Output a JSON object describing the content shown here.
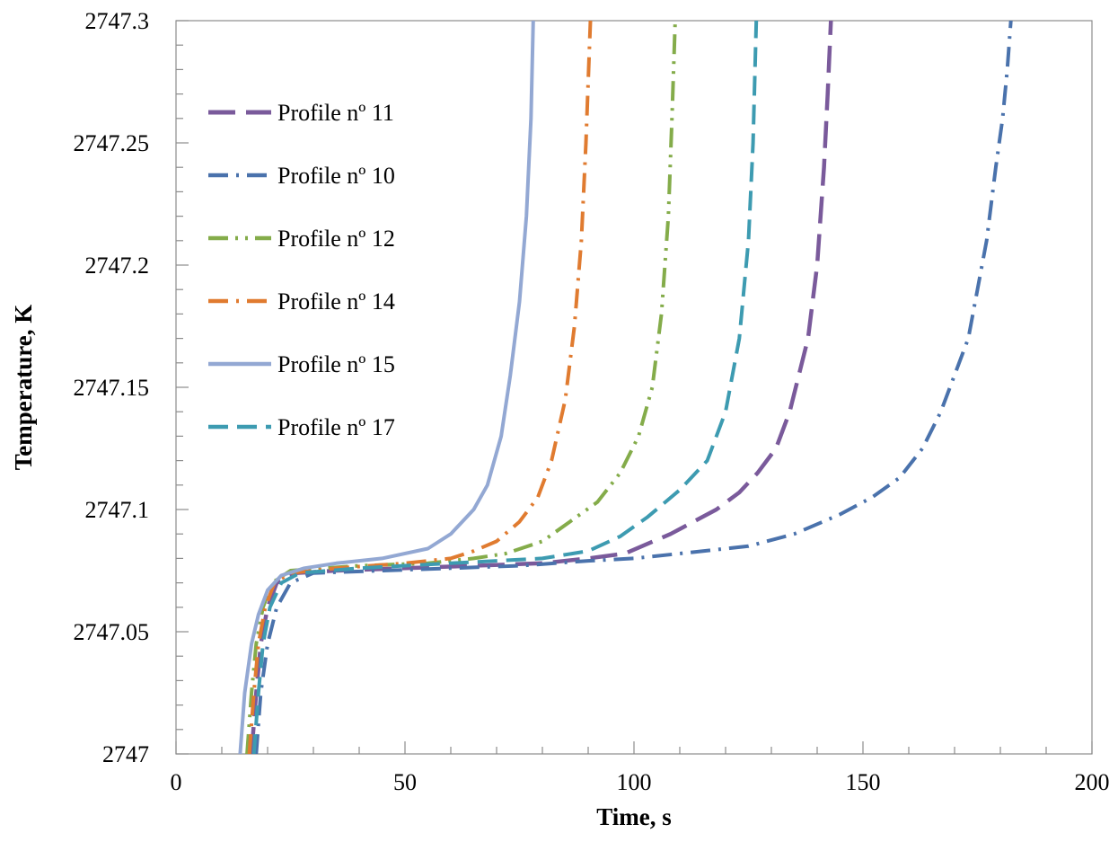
{
  "chart_data": {
    "type": "line",
    "title": "",
    "xlabel": "Time, s",
    "ylabel": "Temperature, K",
    "xlim": [
      0,
      200
    ],
    "ylim": [
      2747,
      2747.3
    ],
    "x_ticks": [
      "0",
      "50",
      "100",
      "150",
      "200"
    ],
    "y_ticks": [
      "2747",
      "2747.05",
      "2747.1",
      "2747.15",
      "2747.2",
      "2747.25",
      "2747.3"
    ],
    "grid": false,
    "legend_position": "top-left",
    "series": [
      {
        "name": "Profile nº 11",
        "color": "#7a5a9b",
        "dash": "long-dash",
        "points": [
          [
            16.5,
            2747
          ],
          [
            17.5,
            2747.025
          ],
          [
            18.5,
            2747.045
          ],
          [
            20,
            2747.06
          ],
          [
            22,
            2747.07
          ],
          [
            26,
            2747.074
          ],
          [
            35,
            2747.075
          ],
          [
            50,
            2747.076
          ],
          [
            65,
            2747.077
          ],
          [
            80,
            2747.078
          ],
          [
            90,
            2747.08
          ],
          [
            98,
            2747.082
          ],
          [
            103,
            2747.086
          ],
          [
            108,
            2747.09
          ],
          [
            113,
            2747.095
          ],
          [
            118,
            2747.1
          ],
          [
            123,
            2747.107
          ],
          [
            127,
            2747.115
          ],
          [
            131,
            2747.125
          ],
          [
            134,
            2747.14
          ],
          [
            136,
            2747.155
          ],
          [
            138,
            2747.17
          ],
          [
            140,
            2747.2
          ],
          [
            141.5,
            2747.24
          ],
          [
            142.3,
            2747.27
          ],
          [
            143,
            2747.3
          ]
        ]
      },
      {
        "name": "Profile nº 10",
        "color": "#4a72ac",
        "dash": "dash-dot",
        "points": [
          [
            17.5,
            2747
          ],
          [
            18.5,
            2747.025
          ],
          [
            20,
            2747.045
          ],
          [
            22,
            2747.06
          ],
          [
            25,
            2747.07
          ],
          [
            30,
            2747.074
          ],
          [
            45,
            2747.075
          ],
          [
            60,
            2747.076
          ],
          [
            75,
            2747.077
          ],
          [
            90,
            2747.079
          ],
          [
            100,
            2747.08
          ],
          [
            110,
            2747.082
          ],
          [
            125,
            2747.085
          ],
          [
            135,
            2747.09
          ],
          [
            145,
            2747.098
          ],
          [
            152,
            2747.105
          ],
          [
            158,
            2747.113
          ],
          [
            163,
            2747.125
          ],
          [
            167,
            2747.14
          ],
          [
            170,
            2747.155
          ],
          [
            173,
            2747.17
          ],
          [
            175,
            2747.19
          ],
          [
            177,
            2747.21
          ],
          [
            179,
            2747.24
          ],
          [
            180.5,
            2747.26
          ],
          [
            181.5,
            2747.28
          ],
          [
            182.3,
            2747.3
          ]
        ]
      },
      {
        "name": "Profile nº 12",
        "color": "#84ac4a",
        "dash": "dash-dot-dot",
        "points": [
          [
            15.5,
            2747
          ],
          [
            16.5,
            2747.025
          ],
          [
            17.5,
            2747.045
          ],
          [
            19,
            2747.06
          ],
          [
            21,
            2747.07
          ],
          [
            25,
            2747.075
          ],
          [
            40,
            2747.077
          ],
          [
            55,
            2747.078
          ],
          [
            65,
            2747.08
          ],
          [
            72,
            2747.082
          ],
          [
            80,
            2747.087
          ],
          [
            86,
            2747.095
          ],
          [
            92,
            2747.103
          ],
          [
            97,
            2747.115
          ],
          [
            101,
            2747.13
          ],
          [
            104,
            2747.15
          ],
          [
            106,
            2747.18
          ],
          [
            107.5,
            2747.22
          ],
          [
            108.3,
            2747.26
          ],
          [
            109,
            2747.3
          ]
        ]
      },
      {
        "name": "Profile nº 14",
        "color": "#e07b30",
        "dash": "dash-dot",
        "points": [
          [
            16,
            2747
          ],
          [
            17,
            2747.025
          ],
          [
            18,
            2747.045
          ],
          [
            19.5,
            2747.06
          ],
          [
            21.5,
            2747.07
          ],
          [
            25,
            2747.074
          ],
          [
            35,
            2747.076
          ],
          [
            50,
            2747.078
          ],
          [
            60,
            2747.08
          ],
          [
            65,
            2747.083
          ],
          [
            70,
            2747.087
          ],
          [
            75,
            2747.095
          ],
          [
            79,
            2747.105
          ],
          [
            82,
            2747.12
          ],
          [
            85,
            2747.145
          ],
          [
            87,
            2747.175
          ],
          [
            88.5,
            2747.21
          ],
          [
            89.5,
            2747.25
          ],
          [
            90.5,
            2747.3
          ]
        ]
      },
      {
        "name": "Profile nº 15",
        "color": "#93a8d3",
        "dash": "solid",
        "points": [
          [
            14,
            2747
          ],
          [
            15,
            2747.025
          ],
          [
            16.5,
            2747.045
          ],
          [
            18,
            2747.057
          ],
          [
            20,
            2747.067
          ],
          [
            23,
            2747.073
          ],
          [
            28,
            2747.076
          ],
          [
            35,
            2747.078
          ],
          [
            45,
            2747.08
          ],
          [
            55,
            2747.084
          ],
          [
            60,
            2747.09
          ],
          [
            65,
            2747.1
          ],
          [
            68,
            2747.11
          ],
          [
            71,
            2747.13
          ],
          [
            73,
            2747.155
          ],
          [
            75,
            2747.185
          ],
          [
            76.5,
            2747.22
          ],
          [
            77.5,
            2747.26
          ],
          [
            78,
            2747.3
          ]
        ]
      },
      {
        "name": "Profile nº 17",
        "color": "#3d9bb1",
        "dash": "dash",
        "points": [
          [
            17,
            2747
          ],
          [
            18,
            2747.025
          ],
          [
            19,
            2747.045
          ],
          [
            20.5,
            2747.06
          ],
          [
            23,
            2747.07
          ],
          [
            27,
            2747.074
          ],
          [
            40,
            2747.076
          ],
          [
            60,
            2747.078
          ],
          [
            80,
            2747.08
          ],
          [
            90,
            2747.083
          ],
          [
            97,
            2747.089
          ],
          [
            103,
            2747.097
          ],
          [
            110,
            2747.108
          ],
          [
            116,
            2747.12
          ],
          [
            120,
            2747.14
          ],
          [
            123,
            2747.17
          ],
          [
            125,
            2747.21
          ],
          [
            126,
            2747.25
          ],
          [
            126.7,
            2747.3
          ]
        ]
      }
    ]
  }
}
